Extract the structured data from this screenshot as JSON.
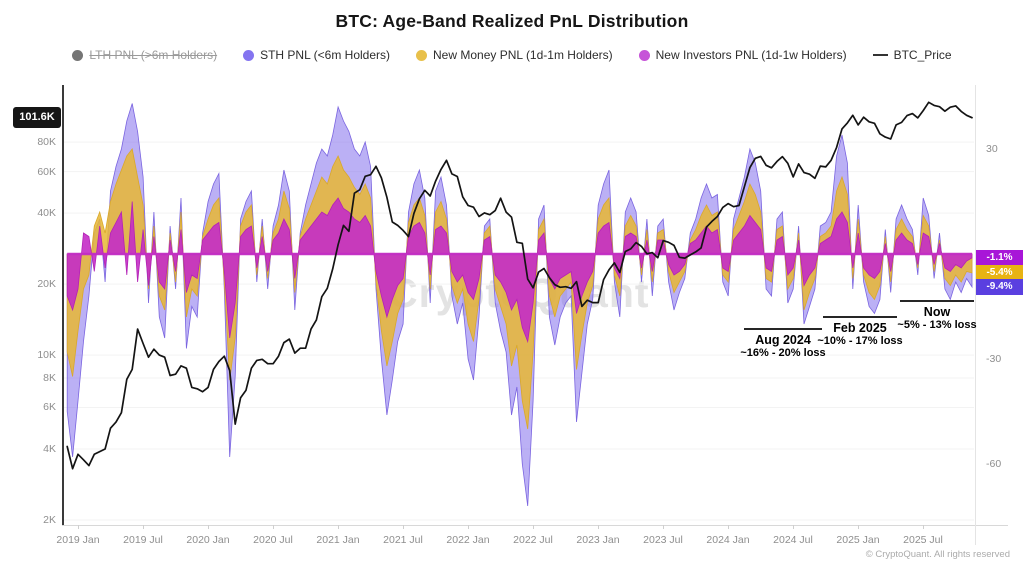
{
  "header": {
    "title": "BTC: Age-Band Realized PnL Distribution"
  },
  "legend": {
    "items": [
      {
        "label": "LTH PNL (>6m Holders)",
        "color": "#757575",
        "disabled": true,
        "marker": "dot"
      },
      {
        "label": "STH PNL (<6m Holders)",
        "color": "#8474f0",
        "disabled": false,
        "marker": "dot"
      },
      {
        "label": "New Money PNL (1d-1m Holders)",
        "color": "#e8c04a",
        "disabled": false,
        "marker": "dot"
      },
      {
        "label": "New Investors PNL (1d-1w Holders)",
        "color": "#c654d8",
        "disabled": false,
        "marker": "dot"
      },
      {
        "label": "BTC_Price",
        "color": "#333333",
        "disabled": false,
        "marker": "line"
      }
    ]
  },
  "badges": {
    "price_current": "101.6K",
    "right": [
      {
        "label": "-1.1%",
        "value": -1.1,
        "color": "#a816d8"
      },
      {
        "label": "-5.4%",
        "value": -5.4,
        "color": "#e8b313"
      },
      {
        "label": "-9.4%",
        "value": -9.4,
        "color": "#5a3fe0"
      }
    ]
  },
  "annotations": [
    {
      "title": "Aug 2024",
      "detail": "~16% - 20% loss"
    },
    {
      "title": "Feb 2025",
      "detail": "~10% - 17% loss"
    },
    {
      "title": "Now",
      "detail": "~5% - 13% loss"
    }
  ],
  "watermark": "CryptoQuant",
  "footer": "© CryptoQuant. All rights reserved",
  "chart_data": {
    "type": "area+line",
    "title": "BTC: Age-Band Realized PnL Distribution",
    "x_unit": "half-month samples",
    "x_start": "2018-12",
    "x_end": "2025-11",
    "x_tick_labels": [
      "2019 Jan",
      "2019 Jul",
      "2020 Jan",
      "2020 Jul",
      "2021 Jan",
      "2021 Jul",
      "2022 Jan",
      "2022 Jul",
      "2023 Jan",
      "2023 Jul",
      "2024 Jan",
      "2024 Jul",
      "2025 Jan",
      "2025 Jul"
    ],
    "left_axis": {
      "scale": "log",
      "unit": "USD (thousands)",
      "current_value": 101.6,
      "ticks": [
        {
          "label": "80K",
          "value": 80
        },
        {
          "label": "60K",
          "value": 60
        },
        {
          "label": "40K",
          "value": 40
        },
        {
          "label": "20K",
          "value": 20
        },
        {
          "label": "10K",
          "value": 10
        },
        {
          "label": "8K",
          "value": 8
        },
        {
          "label": "6K",
          "value": 6
        },
        {
          "label": "4K",
          "value": 4
        },
        {
          "label": "2K",
          "value": 2
        }
      ]
    },
    "right_axis": {
      "unit": "%",
      "ticks": [
        30,
        -30,
        -60
      ],
      "range_hint": [
        -75,
        48
      ]
    },
    "legend_position": "top",
    "grid": "faint-horizontal",
    "series": [
      {
        "name": "STH PNL (<6m Holders)",
        "axis": "right",
        "type": "area",
        "fill": "rgba(124,103,235,0.52)",
        "stroke": "#7a64e0",
        "values": [
          -45,
          -58,
          -42,
          -25,
          -12,
          6,
          10,
          -8,
          18,
          25,
          30,
          38,
          43,
          35,
          22,
          -14,
          12,
          -18,
          -24,
          8,
          -10,
          16,
          -27,
          -15,
          -18,
          6,
          15,
          20,
          23,
          -10,
          -58,
          -35,
          10,
          15,
          18,
          -8,
          10,
          -10,
          8,
          14,
          24,
          18,
          -16,
          6,
          14,
          20,
          26,
          30,
          28,
          34,
          42,
          38,
          35,
          30,
          28,
          32,
          25,
          -10,
          -30,
          -46,
          -36,
          -25,
          -20,
          12,
          20,
          24,
          16,
          -14,
          18,
          22,
          14,
          -12,
          -20,
          -14,
          -30,
          -36,
          -18,
          8,
          10,
          -14,
          -22,
          -28,
          -46,
          -38,
          -60,
          -72,
          -42,
          10,
          14,
          -18,
          -26,
          -18,
          -14,
          -12,
          -48,
          -34,
          -20,
          -13,
          14,
          20,
          24,
          -8,
          -18,
          12,
          16,
          12,
          -8,
          10,
          -12,
          8,
          10,
          -8,
          -16,
          -11,
          -7,
          6,
          10,
          16,
          20,
          16,
          17,
          -8,
          -12,
          10,
          16,
          22,
          30,
          26,
          18,
          -10,
          -12,
          10,
          12,
          -14,
          -10,
          8,
          -20,
          -15,
          -10,
          8,
          9,
          12,
          28,
          34,
          26,
          -10,
          14,
          -8,
          -15,
          -17,
          -13,
          7,
          -11,
          10,
          14,
          10,
          7,
          -6,
          16,
          11,
          -7,
          6,
          -10,
          -13,
          -8,
          -11,
          -7,
          -9.4
        ]
      },
      {
        "name": "New Money PNL (1d-1m Holders)",
        "axis": "right",
        "type": "area",
        "fill": "rgba(231,183,52,0.85)",
        "stroke": "#d9a82b",
        "values": [
          -28,
          -35,
          -22,
          -10,
          -6,
          8,
          12,
          6,
          15,
          20,
          24,
          28,
          30,
          22,
          14,
          -10,
          8,
          -12,
          -16,
          6,
          -8,
          12,
          -18,
          -10,
          -12,
          5,
          10,
          14,
          16,
          -8,
          -36,
          -24,
          8,
          12,
          14,
          -6,
          8,
          -7,
          6,
          10,
          18,
          13,
          -11,
          5,
          10,
          14,
          18,
          22,
          20,
          25,
          28,
          24,
          22,
          19,
          17,
          20,
          16,
          -8,
          -22,
          -32,
          -25,
          -17,
          -13,
          9,
          14,
          16,
          11,
          -10,
          12,
          15,
          10,
          -9,
          -14,
          -10,
          -20,
          -25,
          -13,
          6,
          8,
          -10,
          -15,
          -20,
          -32,
          -26,
          -42,
          -50,
          -28,
          7,
          10,
          -12,
          -18,
          -12,
          -10,
          -8,
          -33,
          -23,
          -14,
          -9,
          10,
          14,
          16,
          -6,
          -12,
          8,
          11,
          8,
          -6,
          7,
          -8,
          6,
          7,
          -5,
          -11,
          -8,
          -5,
          4,
          7,
          11,
          14,
          11,
          12,
          -6,
          -8,
          7,
          11,
          15,
          20,
          17,
          12,
          -7,
          -8,
          7,
          8,
          -10,
          -7,
          6,
          -16,
          -11,
          -7,
          5,
          6,
          8,
          18,
          22,
          17,
          -7,
          10,
          -6,
          -11,
          -13,
          -9,
          5,
          -8,
          7,
          10,
          7,
          5,
          -4,
          11,
          8,
          -5,
          4,
          -7,
          -9,
          -6,
          -8,
          -5,
          -5.4
        ]
      },
      {
        "name": "New Investors PNL (1d-1w Holders)",
        "axis": "right",
        "type": "area",
        "fill": "rgba(196,44,198,0.9)",
        "stroke": "#b322b6",
        "values": [
          -12,
          -16,
          -10,
          6,
          5,
          -5,
          8,
          -4,
          6,
          9,
          12,
          -6,
          15,
          -8,
          7,
          -9,
          5,
          -8,
          -10,
          4,
          -5,
          7,
          -11,
          -6,
          -7,
          4,
          6,
          8,
          9,
          -5,
          -24,
          -14,
          5,
          7,
          8,
          -4,
          5,
          -5,
          4,
          6,
          10,
          7,
          -7,
          4,
          6,
          8,
          10,
          12,
          11,
          14,
          16,
          13,
          12,
          10,
          9,
          11,
          8,
          -5,
          -12,
          -18,
          -13,
          -9,
          -7,
          5,
          8,
          9,
          6,
          -6,
          7,
          8,
          6,
          -5,
          -8,
          -6,
          -11,
          -13,
          -7,
          4,
          5,
          -6,
          -8,
          -11,
          -16,
          -13,
          -21,
          -25,
          -14,
          4,
          6,
          -7,
          -10,
          -7,
          -6,
          -5,
          -17,
          -12,
          -8,
          -5,
          6,
          8,
          9,
          -4,
          -7,
          5,
          6,
          5,
          -4,
          4,
          -5,
          4,
          4,
          -3,
          -6,
          -5,
          -3,
          3,
          4,
          6,
          8,
          6,
          7,
          -4,
          -5,
          4,
          6,
          8,
          11,
          9,
          7,
          -4,
          -5,
          4,
          5,
          -6,
          -4,
          4,
          -9,
          -6,
          -4,
          3,
          4,
          5,
          10,
          12,
          9,
          -4,
          6,
          -4,
          -6,
          -7,
          -5,
          3,
          -5,
          4,
          6,
          4,
          3,
          -3,
          6,
          5,
          -3,
          3,
          -4,
          -5,
          -3,
          -4,
          -2,
          -1.1
        ]
      },
      {
        "name": "BTC_Price",
        "axis": "left",
        "type": "line",
        "stroke": "#141414",
        "values": [
          4.1,
          3.3,
          3.8,
          3.6,
          3.4,
          3.8,
          3.9,
          4.0,
          4.9,
          5.2,
          5.7,
          7.9,
          8.7,
          12.9,
          11.2,
          9.8,
          10.6,
          10.0,
          9.8,
          8.2,
          8.3,
          9.0,
          8.8,
          7.3,
          7.2,
          7.0,
          7.3,
          8.7,
          9.4,
          9.9,
          8.6,
          5.1,
          6.6,
          7.1,
          8.8,
          9.5,
          9.6,
          9.2,
          9.2,
          9.9,
          11.3,
          11.7,
          10.2,
          10.7,
          10.7,
          12.9,
          14.1,
          17.7,
          19.2,
          23.2,
          29.4,
          35.5,
          33.5,
          48.6,
          50.3,
          57.3,
          58.2,
          63.2,
          56.4,
          46.7,
          36.7,
          35.5,
          33.8,
          31.8,
          39.9,
          46.0,
          50.0,
          47.3,
          54.7,
          61.3,
          67.0,
          58.7,
          57.2,
          46.9,
          43.1,
          42.4,
          38.7,
          40.1,
          39.4,
          41.0,
          46.3,
          40.4,
          38.5,
          30.1,
          29.8,
          21.0,
          19.3,
          22.5,
          23.3,
          21.3,
          19.9,
          19.4,
          19.5,
          19.2,
          20.5,
          16.1,
          17.1,
          16.7,
          16.7,
          20.9,
          23.0,
          24.6,
          22.4,
          27.5,
          28.2,
          30.0,
          28.9,
          26.9,
          27.2,
          25.9,
          30.6,
          30.1,
          29.2,
          26.0,
          25.8,
          26.6,
          27.4,
          28.5,
          34.9,
          36.9,
          38.7,
          42.3,
          43.9,
          42.6,
          43.1,
          51.8,
          62.4,
          68.3,
          69.6,
          63.8,
          62.3,
          66.3,
          69.5,
          65.1,
          57.0,
          64.7,
          59.4,
          58.5,
          56.2,
          63.3,
          62.8,
          67.0,
          76.0,
          91.0,
          96.5,
          104.0,
          94.7,
          102.1,
          97.6,
          96.2,
          86.8,
          84.0,
          82.5,
          94.7,
          97.0,
          103.7,
          105.7,
          101.4,
          108.9,
          118.0,
          114.5,
          113.1,
          108.2,
          112.5,
          114.0,
          108.0,
          104.0,
          101.6
        ]
      }
    ]
  }
}
